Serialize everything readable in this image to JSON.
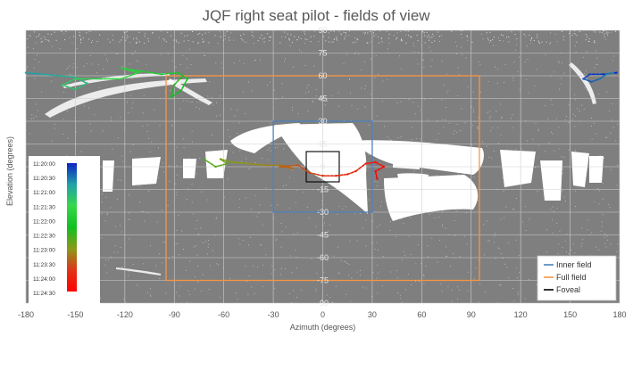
{
  "chart_data": {
    "type": "scatter",
    "title": "JQF right seat pilot - fields of view",
    "xlabel": "Azimuth (degrees)",
    "ylabel": "Elevation (degrees)",
    "xlim": [
      -180,
      180
    ],
    "ylim": [
      -90,
      90
    ],
    "x_ticks": [
      -180,
      -150,
      -120,
      -90,
      -60,
      -30,
      0,
      30,
      60,
      90,
      120,
      150,
      180
    ],
    "y_ticks": [
      90,
      75,
      60,
      45,
      30,
      15,
      0,
      -15,
      -30,
      -45,
      -60,
      -75,
      -90
    ],
    "grid": true,
    "background_color": "#7f7f7f",
    "point_color": "#ffffff",
    "regions": [
      {
        "name": "Inner field",
        "x": [
          -30,
          30
        ],
        "y": [
          -30,
          30
        ],
        "color": "#4f81bd"
      },
      {
        "name": "Full field",
        "x": [
          -95,
          95
        ],
        "y": [
          -75,
          60
        ],
        "color": "#f79646"
      },
      {
        "name": "Foveal",
        "x": [
          -10,
          10
        ],
        "y": [
          -10,
          10
        ],
        "color": "#000000"
      }
    ],
    "legend": {
      "position": "bottom-right",
      "entries": [
        "Inner field",
        "Full field",
        "Foveal"
      ]
    },
    "colorbar": {
      "position": "left",
      "labels": [
        "11:20:00",
        "11:20:30",
        "11:21:00",
        "11:21:30",
        "11:22:00",
        "11:22:30",
        "11:23:00",
        "11:23:30",
        "11:24:00",
        "11:24:30"
      ],
      "colors": [
        "#0b24c2",
        "#22a0a8",
        "#36d84a",
        "#10c020",
        "#8a9a18",
        "#e03418",
        "#ff0000"
      ]
    },
    "gaze_trace": [
      {
        "x": 178,
        "y": 62
      },
      {
        "x": 170,
        "y": 61
      },
      {
        "x": 162,
        "y": 61
      },
      {
        "x": 158,
        "y": 58
      },
      {
        "x": 163,
        "y": 56
      },
      {
        "x": 168,
        "y": 58
      },
      {
        "x": 172,
        "y": 61
      },
      {
        "x": 176,
        "y": 62
      },
      {
        "x": -180,
        "y": 62
      },
      {
        "x": -170,
        "y": 61
      },
      {
        "x": -160,
        "y": 60
      },
      {
        "x": -150,
        "y": 59
      },
      {
        "x": -143,
        "y": 55
      },
      {
        "x": -150,
        "y": 51
      },
      {
        "x": -158,
        "y": 54
      },
      {
        "x": -150,
        "y": 58
      },
      {
        "x": -135,
        "y": 58
      },
      {
        "x": -122,
        "y": 58
      },
      {
        "x": -112,
        "y": 62
      },
      {
        "x": -122,
        "y": 65
      },
      {
        "x": -110,
        "y": 63
      },
      {
        "x": -98,
        "y": 61
      },
      {
        "x": -88,
        "y": 62
      },
      {
        "x": -82,
        "y": 58
      },
      {
        "x": -86,
        "y": 50
      },
      {
        "x": -92,
        "y": 46
      },
      {
        "x": -90,
        "y": 54
      },
      {
        "x": -85,
        "y": 60
      },
      {
        "x": -72,
        "y": 5
      },
      {
        "x": -65,
        "y": 0
      },
      {
        "x": -58,
        "y": 2
      },
      {
        "x": -62,
        "y": 5
      },
      {
        "x": -55,
        "y": 3
      },
      {
        "x": -45,
        "y": 2
      },
      {
        "x": -35,
        "y": 1
      },
      {
        "x": -25,
        "y": 1
      },
      {
        "x": -18,
        "y": -1
      },
      {
        "x": -26,
        "y": 0
      },
      {
        "x": -15,
        "y": 1
      },
      {
        "x": -8,
        "y": -4
      },
      {
        "x": 0,
        "y": -6
      },
      {
        "x": 8,
        "y": -6
      },
      {
        "x": 15,
        "y": -5
      },
      {
        "x": 20,
        "y": -3
      },
      {
        "x": 26,
        "y": 2
      },
      {
        "x": 32,
        "y": 3
      },
      {
        "x": 37,
        "y": 0
      },
      {
        "x": 32,
        "y": -3
      },
      {
        "x": 33,
        "y": -8
      }
    ]
  }
}
